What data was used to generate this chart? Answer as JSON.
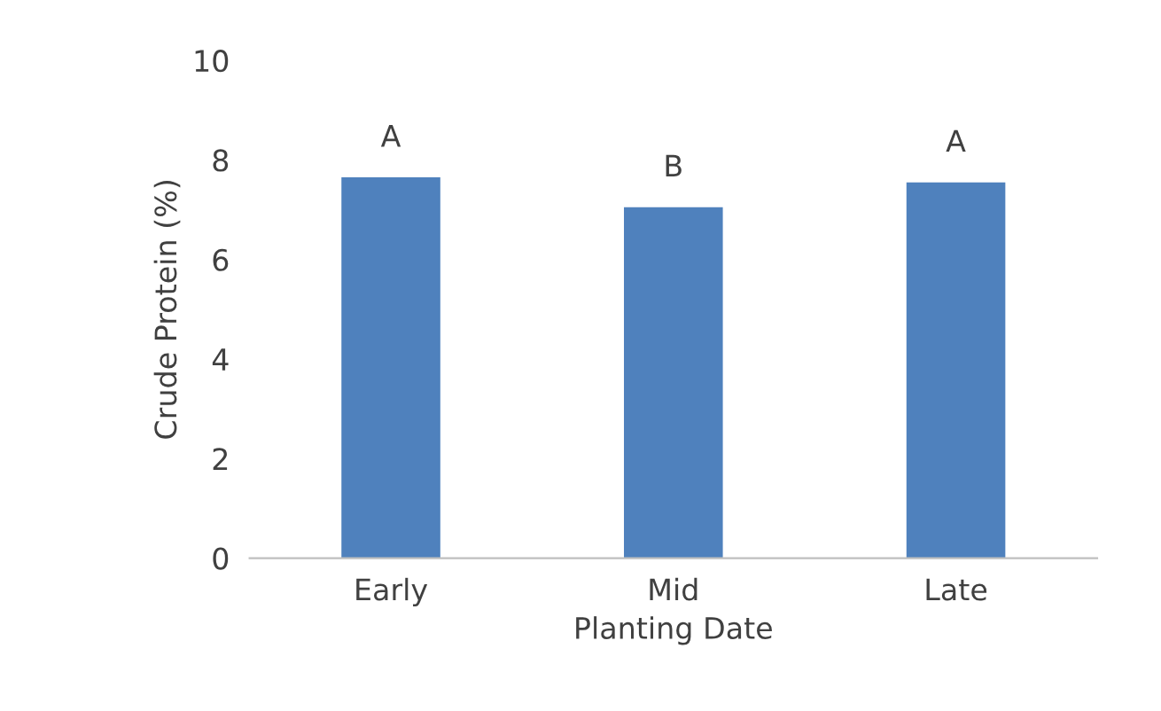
{
  "chart_data": {
    "type": "bar",
    "xlabel": "Planting Date",
    "ylabel": "Crude Protein (%)",
    "categories": [
      "Early",
      "Mid",
      "Late"
    ],
    "values": [
      7.65,
      7.05,
      7.55
    ],
    "color": "#4f81bd",
    "ylim": [
      0,
      10
    ],
    "yticks": [
      0,
      2,
      4,
      6,
      8,
      10
    ],
    "grid": false,
    "legend": false,
    "annotations": [
      "A",
      "B",
      "A"
    ]
  }
}
